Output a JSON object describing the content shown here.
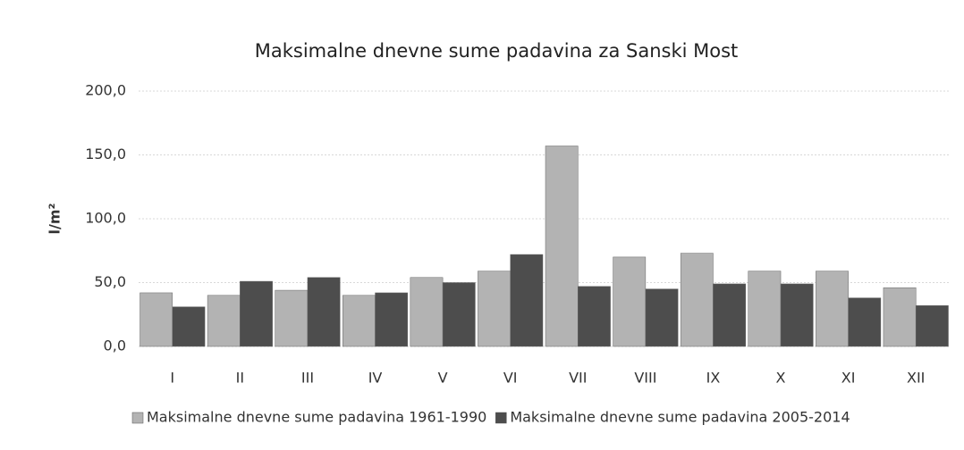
{
  "chart_data": {
    "type": "bar",
    "title": "Maksimalne dnevne sume padavina za Sanski Most",
    "y_label": "l/m²",
    "categories": [
      "I",
      "II",
      "III",
      "IV",
      "V",
      "VI",
      "VII",
      "VIII",
      "IX",
      "X",
      "XI",
      "XII"
    ],
    "series": [
      {
        "name": "Maksimalne dnevne sume padavina 1961-1990",
        "color": "#b3b3b3",
        "values": [
          42,
          40,
          44,
          40,
          54,
          59,
          157,
          70,
          73,
          59,
          59,
          46
        ]
      },
      {
        "name": "Maksimalne dnevne sume padavina 2005-2014",
        "color": "#4d4d4d",
        "values": [
          31,
          51,
          54,
          42,
          50,
          72,
          47,
          45,
          49,
          49,
          38,
          32
        ]
      }
    ],
    "ylim": [
      0,
      200
    ],
    "yticks": [
      {
        "value": 0,
        "label": "0,0"
      },
      {
        "value": 50,
        "label": "50,0"
      },
      {
        "value": 100,
        "label": "100,0"
      },
      {
        "value": 150,
        "label": "150,0"
      },
      {
        "value": 200,
        "label": "200,0"
      }
    ],
    "grid": true,
    "legend": "bottom"
  }
}
